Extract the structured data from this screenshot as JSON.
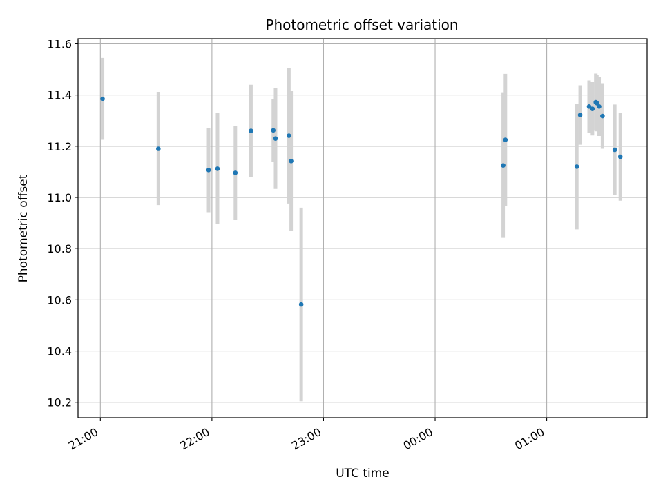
{
  "chart_data": {
    "type": "scatter",
    "title": "Photometric offset variation",
    "xlabel": "UTC time",
    "ylabel": "Photometric offset",
    "x_unit": "hours",
    "xlim": [
      20.8,
      25.9
    ],
    "ylim": [
      10.14,
      11.62
    ],
    "grid": true,
    "x_ticks": [
      {
        "value": 21,
        "label": "21:00"
      },
      {
        "value": 22,
        "label": "22:00"
      },
      {
        "value": 23,
        "label": "23:00"
      },
      {
        "value": 24,
        "label": "00:00"
      },
      {
        "value": 25,
        "label": "01:00"
      }
    ],
    "y_ticks": [
      {
        "value": 10.2,
        "label": "10.2"
      },
      {
        "value": 10.4,
        "label": "10.4"
      },
      {
        "value": 10.6,
        "label": "10.6"
      },
      {
        "value": 10.8,
        "label": "10.8"
      },
      {
        "value": 11.0,
        "label": "11.0"
      },
      {
        "value": 11.2,
        "label": "11.2"
      },
      {
        "value": 11.4,
        "label": "11.4"
      },
      {
        "value": 11.6,
        "label": "11.6"
      }
    ],
    "colors": {
      "point": "#1f77b4",
      "errorbar": "#d3d3d3",
      "grid": "#b0b0b0"
    },
    "points": [
      {
        "x": 21.02,
        "y": 11.385,
        "err": 0.16
      },
      {
        "x": 21.52,
        "y": 11.19,
        "err": 0.22
      },
      {
        "x": 21.97,
        "y": 11.107,
        "err": 0.165
      },
      {
        "x": 22.05,
        "y": 11.112,
        "err": 0.217
      },
      {
        "x": 22.21,
        "y": 11.096,
        "err": 0.183
      },
      {
        "x": 22.35,
        "y": 11.26,
        "err": 0.18
      },
      {
        "x": 22.55,
        "y": 11.262,
        "err": 0.122
      },
      {
        "x": 22.57,
        "y": 11.23,
        "err": 0.197
      },
      {
        "x": 22.69,
        "y": 11.241,
        "err": 0.265
      },
      {
        "x": 22.71,
        "y": 11.142,
        "err": 0.273
      },
      {
        "x": 22.8,
        "y": 10.582,
        "err": 0.378
      },
      {
        "x": 24.61,
        "y": 11.125,
        "err": 0.283
      },
      {
        "x": 24.63,
        "y": 11.225,
        "err": 0.258
      },
      {
        "x": 25.27,
        "y": 11.12,
        "err": 0.245
      },
      {
        "x": 25.3,
        "y": 11.322,
        "err": 0.116
      },
      {
        "x": 25.38,
        "y": 11.355,
        "err": 0.102
      },
      {
        "x": 25.41,
        "y": 11.346,
        "err": 0.104
      },
      {
        "x": 25.44,
        "y": 11.372,
        "err": 0.112
      },
      {
        "x": 25.45,
        "y": 11.368,
        "err": 0.11
      },
      {
        "x": 25.47,
        "y": 11.355,
        "err": 0.115
      },
      {
        "x": 25.5,
        "y": 11.318,
        "err": 0.128
      },
      {
        "x": 25.61,
        "y": 11.186,
        "err": 0.177
      },
      {
        "x": 25.66,
        "y": 11.159,
        "err": 0.172
      }
    ]
  }
}
